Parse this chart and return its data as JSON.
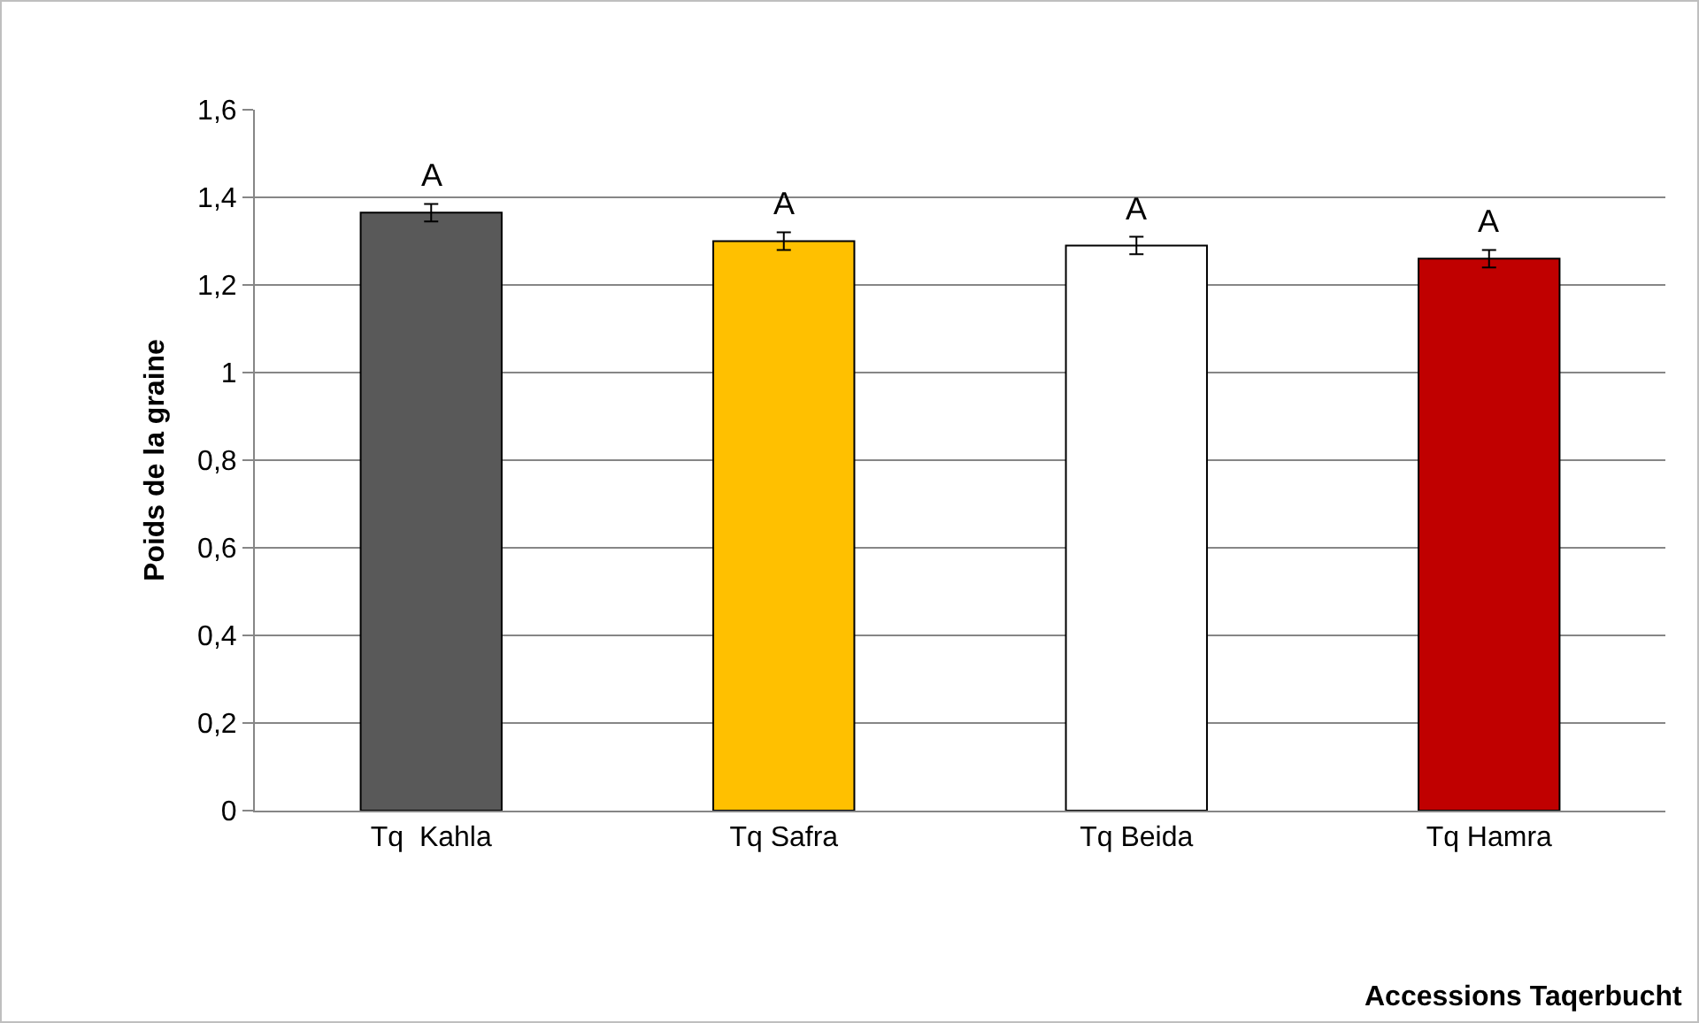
{
  "chart_data": {
    "type": "bar",
    "xlabel": "Accessions Taqerbucht",
    "ylabel": "Poids de la graine",
    "categories": [
      "Tq  Kahla",
      "Tq Safra",
      "Tq Beida",
      "Tq Hamra"
    ],
    "values": [
      1.365,
      1.3,
      1.29,
      1.26
    ],
    "colors": [
      "#595959",
      "#ffc000",
      "#ffffff",
      "#c00000"
    ],
    "errors": [
      0.02,
      0.02,
      0.02,
      0.02
    ],
    "ylim": [
      0,
      1.6
    ],
    "yticks": [
      {
        "value": 0,
        "label": "0"
      },
      {
        "value": 0.2,
        "label": "0,2"
      },
      {
        "value": 0.4,
        "label": "0,4"
      },
      {
        "value": 0.6,
        "label": "0,6"
      },
      {
        "value": 0.8,
        "label": "0,8"
      },
      {
        "value": 1,
        "label": "1"
      },
      {
        "value": 1.2,
        "label": "1,2"
      },
      {
        "value": 1.4,
        "label": "1,4"
      },
      {
        "value": 1.6,
        "label": "1,6"
      }
    ],
    "grid": "y",
    "annotations": [
      "A",
      "A",
      "A",
      "A"
    ]
  }
}
